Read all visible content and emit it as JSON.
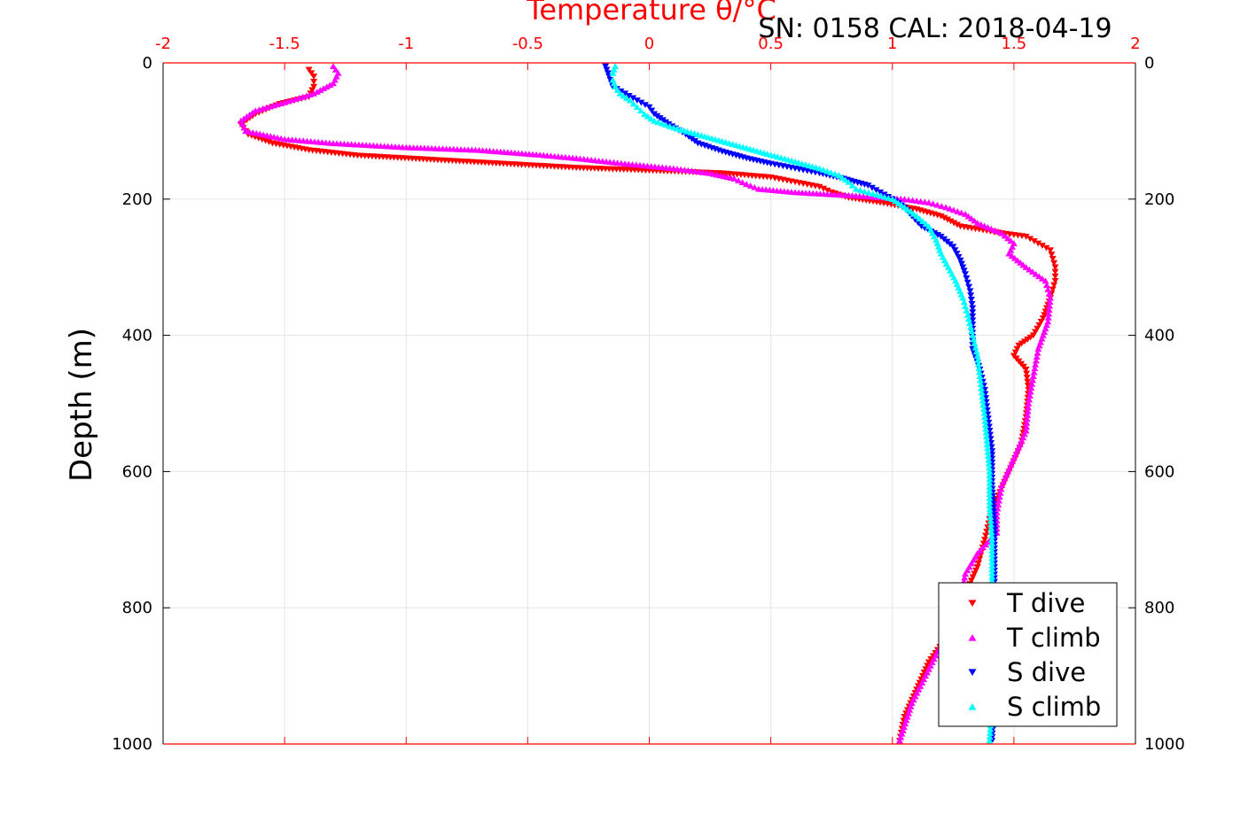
{
  "chart_data": {
    "type": "scatter",
    "title": "SN: 0158  CAL: 2018-04-19",
    "xlabel": "Temperature θ/°C",
    "ylabel": "Depth (m)",
    "xlim": [
      -2,
      2
    ],
    "ylim": [
      0,
      1000
    ],
    "y_reversed": true,
    "x_axis_position": "top",
    "x_ticks": [
      "-2",
      "-1.5",
      "-1",
      "-0.5",
      "0",
      "0.5",
      "1",
      "1.5",
      "2"
    ],
    "y_ticks": [
      "0",
      "200",
      "400",
      "600",
      "800",
      "1000"
    ],
    "grid": true,
    "legend_position": "bottom-right",
    "colors": {
      "axis": "#ff0000",
      "grid": "#e5e5e5",
      "T dive": "#ff0000",
      "T climb": "#ff00ff",
      "S dive": "#0000ff",
      "S climb": "#00ffff"
    },
    "series": [
      {
        "name": "T dive",
        "marker": "triangle-down",
        "color": "#ff0000",
        "points": [
          [
            -1.4,
            10
          ],
          [
            -1.38,
            20
          ],
          [
            -1.38,
            35
          ],
          [
            -1.4,
            50
          ],
          [
            -1.52,
            60
          ],
          [
            -1.62,
            75
          ],
          [
            -1.68,
            90
          ],
          [
            -1.65,
            105
          ],
          [
            -1.55,
            118
          ],
          [
            -1.4,
            128
          ],
          [
            -1.2,
            136
          ],
          [
            -0.9,
            142
          ],
          [
            -0.6,
            148
          ],
          [
            -0.3,
            154
          ],
          [
            0.0,
            158
          ],
          [
            0.3,
            162
          ],
          [
            0.5,
            168
          ],
          [
            0.6,
            175
          ],
          [
            0.7,
            182
          ],
          [
            0.75,
            190
          ],
          [
            0.82,
            198
          ],
          [
            0.95,
            205
          ],
          [
            1.1,
            215
          ],
          [
            1.2,
            225
          ],
          [
            1.28,
            240
          ],
          [
            1.45,
            250
          ],
          [
            1.55,
            255
          ],
          [
            1.6,
            265
          ],
          [
            1.65,
            275
          ],
          [
            1.67,
            300
          ],
          [
            1.67,
            320
          ],
          [
            1.65,
            345
          ],
          [
            1.62,
            375
          ],
          [
            1.58,
            400
          ],
          [
            1.52,
            415
          ],
          [
            1.5,
            430
          ],
          [
            1.55,
            450
          ],
          [
            1.56,
            480
          ],
          [
            1.55,
            520
          ],
          [
            1.53,
            560
          ],
          [
            1.48,
            600
          ],
          [
            1.43,
            640
          ],
          [
            1.4,
            670
          ],
          [
            1.38,
            700
          ],
          [
            1.35,
            740
          ],
          [
            1.3,
            780
          ],
          [
            1.25,
            830
          ],
          [
            1.15,
            880
          ],
          [
            1.1,
            920
          ],
          [
            1.05,
            960
          ],
          [
            1.03,
            995
          ]
        ]
      },
      {
        "name": "T climb",
        "marker": "triangle-up",
        "color": "#ff00ff",
        "points": [
          [
            -1.3,
            5
          ],
          [
            -1.28,
            15
          ],
          [
            -1.3,
            30
          ],
          [
            -1.38,
            45
          ],
          [
            -1.5,
            58
          ],
          [
            -1.62,
            70
          ],
          [
            -1.68,
            85
          ],
          [
            -1.66,
            100
          ],
          [
            -1.5,
            112
          ],
          [
            -1.3,
            118
          ],
          [
            -1.0,
            124
          ],
          [
            -0.7,
            128
          ],
          [
            -0.45,
            135
          ],
          [
            -0.3,
            140
          ],
          [
            -0.1,
            148
          ],
          [
            0.1,
            155
          ],
          [
            0.25,
            162
          ],
          [
            0.35,
            170
          ],
          [
            0.4,
            178
          ],
          [
            0.45,
            185
          ],
          [
            0.6,
            190
          ],
          [
            0.85,
            195
          ],
          [
            1.05,
            200
          ],
          [
            1.15,
            205
          ],
          [
            1.22,
            212
          ],
          [
            1.3,
            222
          ],
          [
            1.35,
            235
          ],
          [
            1.45,
            250
          ],
          [
            1.5,
            265
          ],
          [
            1.48,
            280
          ],
          [
            1.55,
            300
          ],
          [
            1.63,
            320
          ],
          [
            1.65,
            345
          ],
          [
            1.64,
            380
          ],
          [
            1.6,
            420
          ],
          [
            1.58,
            460
          ],
          [
            1.56,
            500
          ],
          [
            1.55,
            540
          ],
          [
            1.5,
            580
          ],
          [
            1.45,
            620
          ],
          [
            1.43,
            660
          ],
          [
            1.43,
            690
          ],
          [
            1.35,
            720
          ],
          [
            1.3,
            750
          ],
          [
            1.28,
            790
          ],
          [
            1.22,
            840
          ],
          [
            1.15,
            890
          ],
          [
            1.08,
            940
          ],
          [
            1.03,
            995
          ]
        ]
      },
      {
        "name": "S dive",
        "marker": "triangle-down",
        "color": "#0000ff",
        "points": [
          [
            -0.18,
            5
          ],
          [
            -0.17,
            15
          ],
          [
            -0.16,
            25
          ],
          [
            -0.15,
            35
          ],
          [
            -0.1,
            45
          ],
          [
            -0.05,
            55
          ],
          [
            0.0,
            65
          ],
          [
            0.02,
            75
          ],
          [
            0.08,
            90
          ],
          [
            0.15,
            105
          ],
          [
            0.2,
            118
          ],
          [
            0.3,
            130
          ],
          [
            0.4,
            140
          ],
          [
            0.5,
            148
          ],
          [
            0.6,
            155
          ],
          [
            0.7,
            162
          ],
          [
            0.8,
            170
          ],
          [
            0.9,
            180
          ],
          [
            0.95,
            190
          ],
          [
            1.0,
            200
          ],
          [
            1.05,
            212
          ],
          [
            1.08,
            225
          ],
          [
            1.12,
            240
          ],
          [
            1.2,
            255
          ],
          [
            1.25,
            270
          ],
          [
            1.28,
            290
          ],
          [
            1.3,
            310
          ],
          [
            1.32,
            335
          ],
          [
            1.33,
            360
          ],
          [
            1.33,
            390
          ],
          [
            1.33,
            420
          ],
          [
            1.36,
            450
          ],
          [
            1.38,
            480
          ],
          [
            1.39,
            510
          ],
          [
            1.4,
            540
          ],
          [
            1.41,
            570
          ],
          [
            1.41,
            620
          ],
          [
            1.42,
            680
          ],
          [
            1.42,
            740
          ],
          [
            1.42,
            800
          ],
          [
            1.42,
            860
          ],
          [
            1.42,
            920
          ],
          [
            1.41,
            995
          ]
        ]
      },
      {
        "name": "S climb",
        "marker": "triangle-up",
        "color": "#00ffff",
        "points": [
          [
            -0.14,
            5
          ],
          [
            -0.15,
            15
          ],
          [
            -0.15,
            25
          ],
          [
            -0.14,
            35
          ],
          [
            -0.12,
            45
          ],
          [
            -0.08,
            55
          ],
          [
            -0.05,
            65
          ],
          [
            -0.02,
            75
          ],
          [
            0.02,
            85
          ],
          [
            0.1,
            95
          ],
          [
            0.2,
            105
          ],
          [
            0.3,
            115
          ],
          [
            0.4,
            125
          ],
          [
            0.5,
            135
          ],
          [
            0.6,
            145
          ],
          [
            0.7,
            155
          ],
          [
            0.78,
            165
          ],
          [
            0.82,
            175
          ],
          [
            0.85,
            185
          ],
          [
            0.92,
            192
          ],
          [
            1.0,
            200
          ],
          [
            1.05,
            212
          ],
          [
            1.1,
            225
          ],
          [
            1.15,
            240
          ],
          [
            1.18,
            260
          ],
          [
            1.2,
            280
          ],
          [
            1.23,
            300
          ],
          [
            1.26,
            320
          ],
          [
            1.29,
            345
          ],
          [
            1.31,
            370
          ],
          [
            1.33,
            400
          ],
          [
            1.35,
            430
          ],
          [
            1.36,
            460
          ],
          [
            1.37,
            490
          ],
          [
            1.38,
            520
          ],
          [
            1.39,
            560
          ],
          [
            1.4,
            600
          ],
          [
            1.4,
            650
          ],
          [
            1.41,
            700
          ],
          [
            1.41,
            760
          ],
          [
            1.41,
            820
          ],
          [
            1.41,
            880
          ],
          [
            1.41,
            940
          ],
          [
            1.4,
            995
          ]
        ]
      }
    ]
  }
}
